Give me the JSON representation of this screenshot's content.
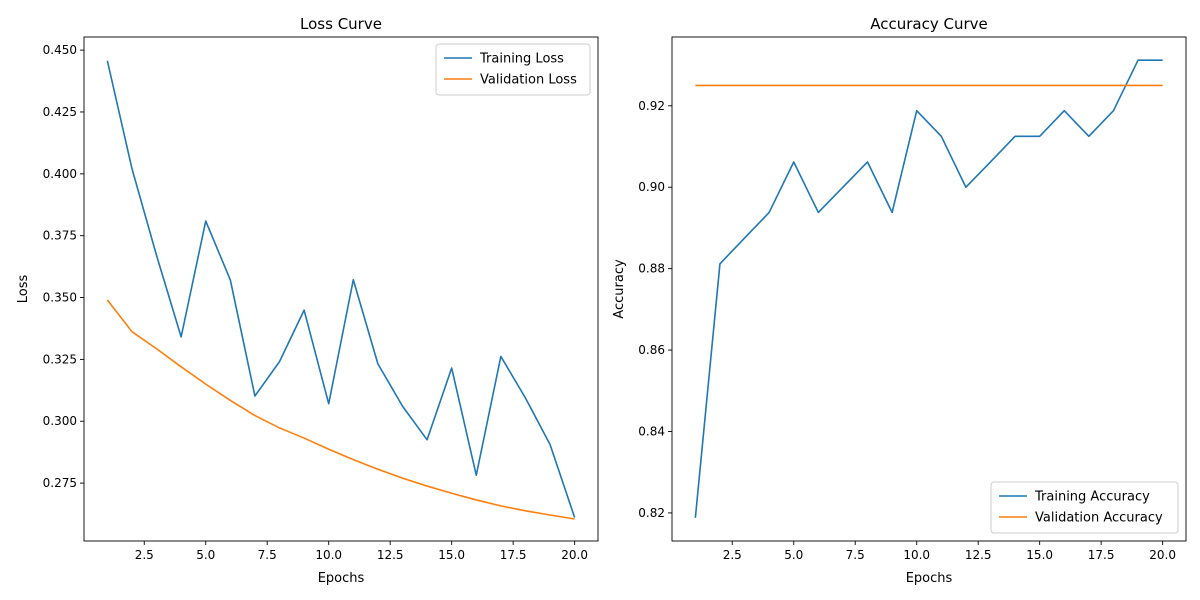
{
  "chart_data": [
    {
      "type": "line",
      "title": "Loss Curve",
      "xlabel": "Epochs",
      "ylabel": "Loss",
      "x": [
        1,
        2,
        3,
        4,
        5,
        6,
        7,
        8,
        9,
        10,
        11,
        12,
        13,
        14,
        15,
        16,
        17,
        18,
        19,
        20
      ],
      "xlim": [
        0.05,
        20.95
      ],
      "ylim": [
        0.2516,
        0.4553
      ],
      "xticks": [
        2.5,
        5.0,
        7.5,
        10.0,
        12.5,
        15.0,
        17.5,
        20.0
      ],
      "xtick_labels": [
        "2.5",
        "5.0",
        "7.5",
        "10.0",
        "12.5",
        "15.0",
        "17.5",
        "20.0"
      ],
      "yticks": [
        0.275,
        0.3,
        0.325,
        0.35,
        0.375,
        0.4,
        0.425,
        0.45
      ],
      "ytick_labels": [
        "0.275",
        "0.300",
        "0.325",
        "0.350",
        "0.375",
        "0.400",
        "0.425",
        "0.450"
      ],
      "grid": false,
      "legend_position": "upper right",
      "series": [
        {
          "name": "Training Loss",
          "color": "#1f77b4",
          "values": [
            0.4457,
            0.4021,
            0.367,
            0.3341,
            0.3809,
            0.3571,
            0.3102,
            0.3241,
            0.3449,
            0.3071,
            0.3572,
            0.3232,
            0.3061,
            0.2925,
            0.3215,
            0.2782,
            0.3262,
            0.3094,
            0.2906,
            0.2611
          ]
        },
        {
          "name": "Validation Loss",
          "color": "#ff7f0e",
          "values": [
            0.349,
            0.3362,
            0.3293,
            0.322,
            0.315,
            0.3084,
            0.3023,
            0.2973,
            0.2932,
            0.2887,
            0.2845,
            0.2806,
            0.277,
            0.2738,
            0.2709,
            0.2682,
            0.2658,
            0.2638,
            0.2621,
            0.2605
          ]
        }
      ]
    },
    {
      "type": "line",
      "title": "Accuracy Curve",
      "xlabel": "Epochs",
      "ylabel": "Accuracy",
      "x": [
        1,
        2,
        3,
        4,
        5,
        6,
        7,
        8,
        9,
        10,
        11,
        12,
        13,
        14,
        15,
        16,
        17,
        18,
        19,
        20
      ],
      "xlim": [
        0.05,
        20.95
      ],
      "ylim": [
        0.8131,
        0.9369
      ],
      "xticks": [
        2.5,
        5.0,
        7.5,
        10.0,
        12.5,
        15.0,
        17.5,
        20.0
      ],
      "xtick_labels": [
        "2.5",
        "5.0",
        "7.5",
        "10.0",
        "12.5",
        "15.0",
        "17.5",
        "20.0"
      ],
      "yticks": [
        0.82,
        0.84,
        0.86,
        0.88,
        0.9,
        0.92
      ],
      "ytick_labels": [
        "0.82",
        "0.84",
        "0.86",
        "0.88",
        "0.90",
        "0.92"
      ],
      "grid": false,
      "legend_position": "lower right",
      "series": [
        {
          "name": "Training Accuracy",
          "color": "#1f77b4",
          "values": [
            0.8188,
            0.8812,
            0.8875,
            0.8938,
            0.9062,
            0.8938,
            0.9,
            0.9062,
            0.8938,
            0.9188,
            0.9125,
            0.9,
            0.9062,
            0.9125,
            0.9125,
            0.9188,
            0.9125,
            0.9188,
            0.9312,
            0.9312
          ]
        },
        {
          "name": "Validation Accuracy",
          "color": "#ff7f0e",
          "values": [
            0.925,
            0.925,
            0.925,
            0.925,
            0.925,
            0.925,
            0.925,
            0.925,
            0.925,
            0.925,
            0.925,
            0.925,
            0.925,
            0.925,
            0.925,
            0.925,
            0.925,
            0.925,
            0.925,
            0.925
          ]
        }
      ]
    }
  ]
}
